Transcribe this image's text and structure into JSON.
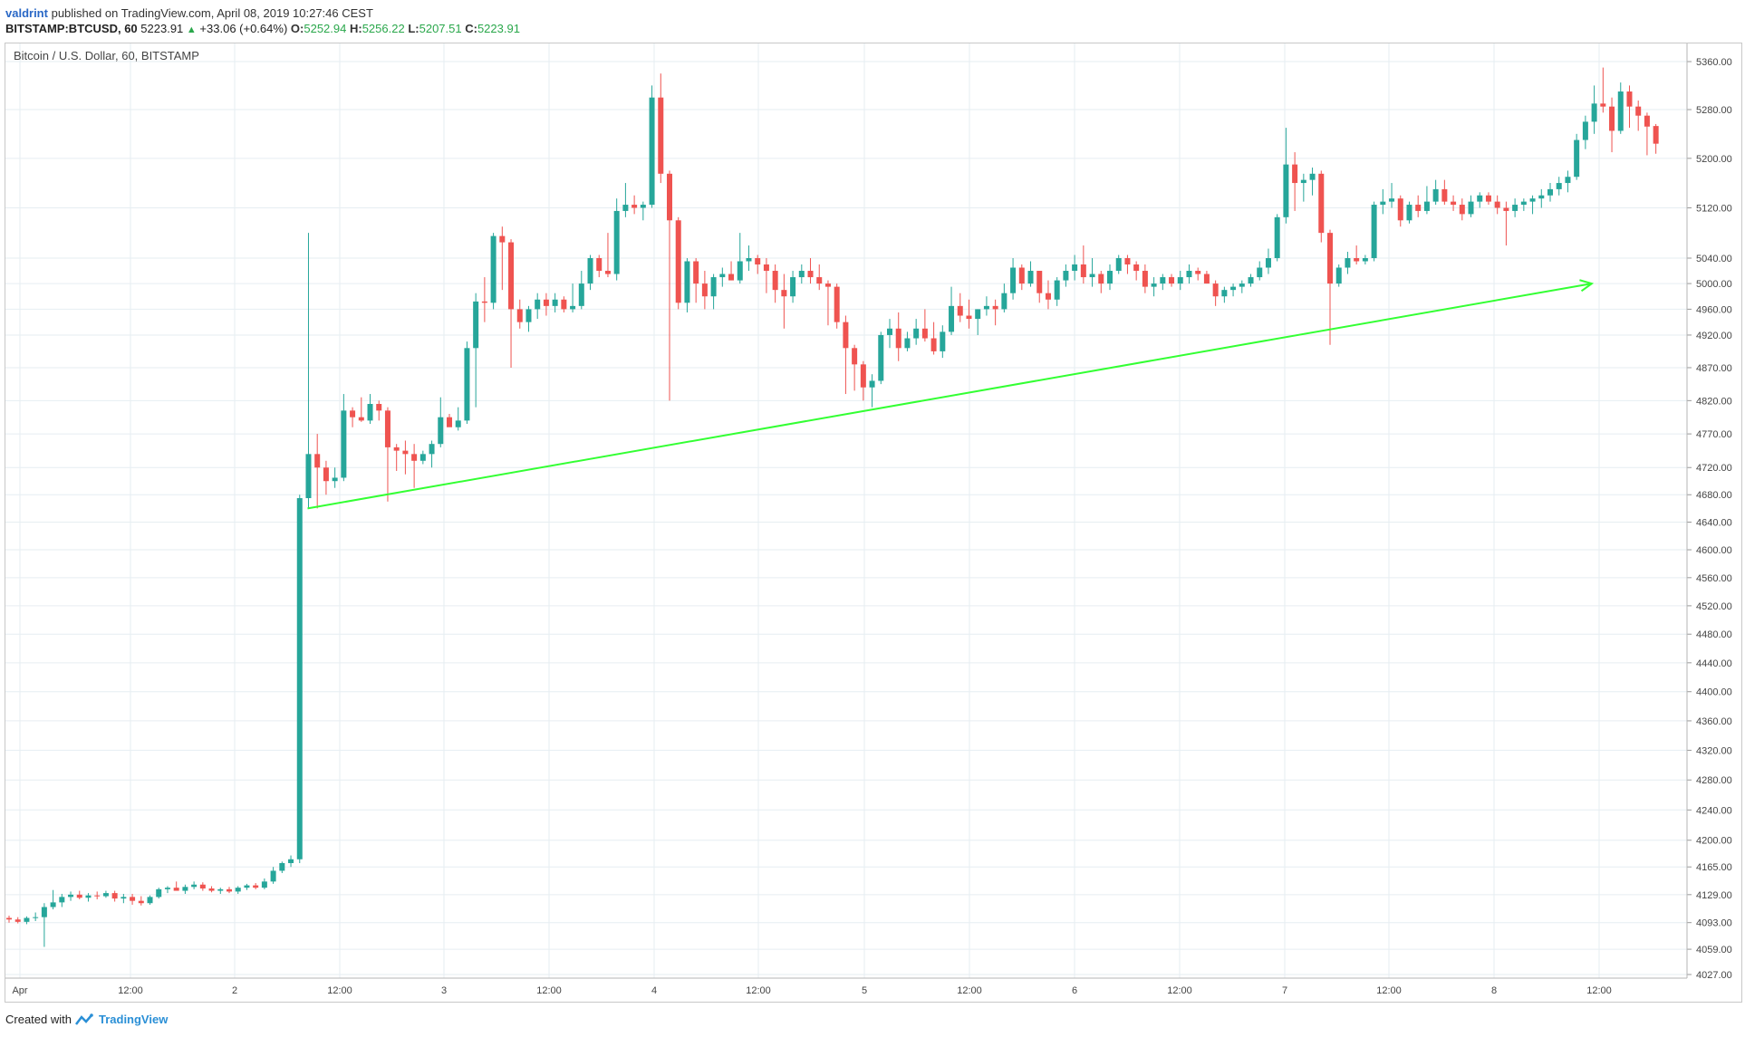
{
  "header": {
    "user": "valdrint",
    "published_text": "published on TradingView.com, April 08, 2019 10:27:46 CEST"
  },
  "ticker": {
    "symbol": "BITSTAMP:BTCUSD, 60",
    "last": "5223.91",
    "change": "+33.06 (+0.64%)",
    "open_label": "O:",
    "open": "5252.94",
    "high_label": "H:",
    "high": "5256.22",
    "low_label": "L:",
    "low": "5207.51",
    "close_label": "C:",
    "close": "5223.91"
  },
  "footer": {
    "created_with": "Created with",
    "brand": "TradingView"
  },
  "chart_data": {
    "type": "candlestick",
    "title": "Bitcoin / U.S. Dollar, 60, BITSTAMP",
    "timeframe": "60",
    "price_scale": "log",
    "y_ticks": [
      "5360.00",
      "5280.00",
      "5200.00",
      "5120.00",
      "5040.00",
      "5000.00",
      "4960.00",
      "4920.00",
      "4870.00",
      "4820.00",
      "4770.00",
      "4720.00",
      "4680.00",
      "4640.00",
      "4600.00",
      "4560.00",
      "4520.00",
      "4480.00",
      "4440.00",
      "4400.00",
      "4360.00",
      "4320.00",
      "4280.00",
      "4240.00",
      "4200.00",
      "4165.00",
      "4129.00",
      "4093.00",
      "4059.00",
      "4027.00"
    ],
    "x_ticks": [
      "Apr",
      "12:00",
      "2",
      "12:00",
      "3",
      "12:00",
      "4",
      "12:00",
      "5",
      "12:00",
      "6",
      "12:00",
      "7",
      "12:00",
      "8",
      "12:00"
    ],
    "colors": {
      "up": "#26a69a",
      "down": "#ef5350",
      "trendline": "#33ff33",
      "grid": "#e6eef2"
    },
    "trendline": {
      "start": {
        "candle_index": 34,
        "price": 4660
      },
      "end": {
        "candle_index": 179,
        "price": 5000
      },
      "arrow": true
    },
    "candles": [
      {
        "o": 4099,
        "h": 4102,
        "l": 4093,
        "c": 4097
      },
      {
        "o": 4097,
        "h": 4100,
        "l": 4092,
        "c": 4094
      },
      {
        "o": 4094,
        "h": 4101,
        "l": 4091,
        "c": 4099
      },
      {
        "o": 4099,
        "h": 4106,
        "l": 4095,
        "c": 4100
      },
      {
        "o": 4100,
        "h": 4118,
        "l": 4062,
        "c": 4113
      },
      {
        "o": 4113,
        "h": 4135,
        "l": 4110,
        "c": 4119
      },
      {
        "o": 4119,
        "h": 4130,
        "l": 4113,
        "c": 4126
      },
      {
        "o": 4126,
        "h": 4133,
        "l": 4121,
        "c": 4129
      },
      {
        "o": 4129,
        "h": 4134,
        "l": 4123,
        "c": 4125
      },
      {
        "o": 4125,
        "h": 4131,
        "l": 4120,
        "c": 4128
      },
      {
        "o": 4128,
        "h": 4133,
        "l": 4123,
        "c": 4127
      },
      {
        "o": 4127,
        "h": 4134,
        "l": 4125,
        "c": 4131
      },
      {
        "o": 4131,
        "h": 4134,
        "l": 4120,
        "c": 4124
      },
      {
        "o": 4124,
        "h": 4130,
        "l": 4118,
        "c": 4126
      },
      {
        "o": 4126,
        "h": 4130,
        "l": 4116,
        "c": 4121
      },
      {
        "o": 4121,
        "h": 4127,
        "l": 4115,
        "c": 4118
      },
      {
        "o": 4118,
        "h": 4128,
        "l": 4116,
        "c": 4126
      },
      {
        "o": 4126,
        "h": 4138,
        "l": 4124,
        "c": 4136
      },
      {
        "o": 4136,
        "h": 4140,
        "l": 4131,
        "c": 4138
      },
      {
        "o": 4138,
        "h": 4146,
        "l": 4135,
        "c": 4134
      },
      {
        "o": 4134,
        "h": 4142,
        "l": 4130,
        "c": 4139
      },
      {
        "o": 4139,
        "h": 4146,
        "l": 4136,
        "c": 4142
      },
      {
        "o": 4142,
        "h": 4145,
        "l": 4134,
        "c": 4137
      },
      {
        "o": 4137,
        "h": 4140,
        "l": 4132,
        "c": 4134
      },
      {
        "o": 4134,
        "h": 4138,
        "l": 4130,
        "c": 4136
      },
      {
        "o": 4136,
        "h": 4139,
        "l": 4131,
        "c": 4133
      },
      {
        "o": 4133,
        "h": 4140,
        "l": 4130,
        "c": 4138
      },
      {
        "o": 4138,
        "h": 4143,
        "l": 4135,
        "c": 4141
      },
      {
        "o": 4141,
        "h": 4144,
        "l": 4136,
        "c": 4138
      },
      {
        "o": 4138,
        "h": 4150,
        "l": 4136,
        "c": 4146
      },
      {
        "o": 4146,
        "h": 4165,
        "l": 4143,
        "c": 4160
      },
      {
        "o": 4160,
        "h": 4172,
        "l": 4157,
        "c": 4170
      },
      {
        "o": 4170,
        "h": 4180,
        "l": 4165,
        "c": 4175
      },
      {
        "o": 4175,
        "h": 4680,
        "l": 4170,
        "c": 4675
      },
      {
        "o": 4675,
        "h": 5080,
        "l": 4660,
        "c": 4740
      },
      {
        "o": 4740,
        "h": 4770,
        "l": 4660,
        "c": 4720
      },
      {
        "o": 4720,
        "h": 4730,
        "l": 4680,
        "c": 4700
      },
      {
        "o": 4700,
        "h": 4720,
        "l": 4690,
        "c": 4705
      },
      {
        "o": 4705,
        "h": 4830,
        "l": 4700,
        "c": 4805
      },
      {
        "o": 4805,
        "h": 4810,
        "l": 4780,
        "c": 4795
      },
      {
        "o": 4795,
        "h": 4825,
        "l": 4788,
        "c": 4790
      },
      {
        "o": 4790,
        "h": 4830,
        "l": 4785,
        "c": 4815
      },
      {
        "o": 4815,
        "h": 4820,
        "l": 4790,
        "c": 4805
      },
      {
        "o": 4805,
        "h": 4810,
        "l": 4670,
        "c": 4750
      },
      {
        "o": 4750,
        "h": 4755,
        "l": 4715,
        "c": 4745
      },
      {
        "o": 4745,
        "h": 4760,
        "l": 4710,
        "c": 4740
      },
      {
        "o": 4740,
        "h": 4755,
        "l": 4690,
        "c": 4730
      },
      {
        "o": 4730,
        "h": 4745,
        "l": 4725,
        "c": 4740
      },
      {
        "o": 4740,
        "h": 4760,
        "l": 4720,
        "c": 4755
      },
      {
        "o": 4755,
        "h": 4825,
        "l": 4750,
        "c": 4795
      },
      {
        "o": 4795,
        "h": 4800,
        "l": 4790,
        "c": 4780
      },
      {
        "o": 4780,
        "h": 4810,
        "l": 4775,
        "c": 4790
      },
      {
        "o": 4790,
        "h": 4910,
        "l": 4785,
        "c": 4900
      },
      {
        "o": 4900,
        "h": 4985,
        "l": 4810,
        "c": 4972
      },
      {
        "o": 4972,
        "h": 5010,
        "l": 4940,
        "c": 4970
      },
      {
        "o": 4970,
        "h": 5080,
        "l": 4960,
        "c": 5075
      },
      {
        "o": 5075,
        "h": 5090,
        "l": 4990,
        "c": 5065
      },
      {
        "o": 5065,
        "h": 5070,
        "l": 4870,
        "c": 4960
      },
      {
        "o": 4960,
        "h": 4975,
        "l": 4930,
        "c": 4940
      },
      {
        "o": 4940,
        "h": 4965,
        "l": 4925,
        "c": 4960
      },
      {
        "o": 4960,
        "h": 4985,
        "l": 4945,
        "c": 4975
      },
      {
        "o": 4975,
        "h": 4985,
        "l": 4950,
        "c": 4965
      },
      {
        "o": 4965,
        "h": 4985,
        "l": 4955,
        "c": 4975
      },
      {
        "o": 4975,
        "h": 4980,
        "l": 4955,
        "c": 4960
      },
      {
        "o": 4960,
        "h": 5000,
        "l": 4955,
        "c": 4965
      },
      {
        "o": 4965,
        "h": 5020,
        "l": 4960,
        "c": 5000
      },
      {
        "o": 5000,
        "h": 5045,
        "l": 4990,
        "c": 5040
      },
      {
        "o": 5040,
        "h": 5045,
        "l": 5010,
        "c": 5020
      },
      {
        "o": 5020,
        "h": 5080,
        "l": 5010,
        "c": 5015
      },
      {
        "o": 5015,
        "h": 5135,
        "l": 5005,
        "c": 5115
      },
      {
        "o": 5115,
        "h": 5160,
        "l": 5105,
        "c": 5125
      },
      {
        "o": 5125,
        "h": 5140,
        "l": 5110,
        "c": 5120
      },
      {
        "o": 5120,
        "h": 5130,
        "l": 5100,
        "c": 5125
      },
      {
        "o": 5125,
        "h": 5320,
        "l": 5120,
        "c": 5300
      },
      {
        "o": 5300,
        "h": 5340,
        "l": 5160,
        "c": 5175
      },
      {
        "o": 5175,
        "h": 5180,
        "l": 4820,
        "c": 5100
      },
      {
        "o": 5100,
        "h": 5105,
        "l": 4960,
        "c": 4970
      },
      {
        "o": 4970,
        "h": 5040,
        "l": 4955,
        "c": 5035
      },
      {
        "o": 5035,
        "h": 5040,
        "l": 4970,
        "c": 5000
      },
      {
        "o": 5000,
        "h": 5020,
        "l": 4960,
        "c": 4980
      },
      {
        "o": 4980,
        "h": 5015,
        "l": 4960,
        "c": 5010
      },
      {
        "o": 5010,
        "h": 5025,
        "l": 4995,
        "c": 5015
      },
      {
        "o": 5015,
        "h": 5035,
        "l": 5005,
        "c": 5005
      },
      {
        "o": 5005,
        "h": 5080,
        "l": 5000,
        "c": 5035
      },
      {
        "o": 5035,
        "h": 5060,
        "l": 5020,
        "c": 5040
      },
      {
        "o": 5040,
        "h": 5045,
        "l": 5015,
        "c": 5030
      },
      {
        "o": 5030,
        "h": 5040,
        "l": 4985,
        "c": 5020
      },
      {
        "o": 5020,
        "h": 5030,
        "l": 4970,
        "c": 4990
      },
      {
        "o": 4990,
        "h": 5015,
        "l": 4930,
        "c": 4980
      },
      {
        "o": 4980,
        "h": 5020,
        "l": 4970,
        "c": 5010
      },
      {
        "o": 5010,
        "h": 5030,
        "l": 5000,
        "c": 5020
      },
      {
        "o": 5020,
        "h": 5040,
        "l": 5000,
        "c": 5010
      },
      {
        "o": 5010,
        "h": 5030,
        "l": 4990,
        "c": 5000
      },
      {
        "o": 5000,
        "h": 5005,
        "l": 4935,
        "c": 4995
      },
      {
        "o": 4995,
        "h": 5000,
        "l": 4930,
        "c": 4940
      },
      {
        "o": 4940,
        "h": 4950,
        "l": 4830,
        "c": 4900
      },
      {
        "o": 4900,
        "h": 4905,
        "l": 4835,
        "c": 4875
      },
      {
        "o": 4875,
        "h": 4880,
        "l": 4820,
        "c": 4840
      },
      {
        "o": 4840,
        "h": 4860,
        "l": 4810,
        "c": 4850
      },
      {
        "o": 4850,
        "h": 4925,
        "l": 4845,
        "c": 4920
      },
      {
        "o": 4920,
        "h": 4945,
        "l": 4900,
        "c": 4930
      },
      {
        "o": 4930,
        "h": 4955,
        "l": 4880,
        "c": 4900
      },
      {
        "o": 4900,
        "h": 4925,
        "l": 4895,
        "c": 4915
      },
      {
        "o": 4915,
        "h": 4945,
        "l": 4905,
        "c": 4930
      },
      {
        "o": 4930,
        "h": 4960,
        "l": 4910,
        "c": 4915
      },
      {
        "o": 4915,
        "h": 4940,
        "l": 4890,
        "c": 4895
      },
      {
        "o": 4895,
        "h": 4935,
        "l": 4885,
        "c": 4925
      },
      {
        "o": 4925,
        "h": 4995,
        "l": 4920,
        "c": 4965
      },
      {
        "o": 4965,
        "h": 4985,
        "l": 4940,
        "c": 4950
      },
      {
        "o": 4950,
        "h": 4975,
        "l": 4930,
        "c": 4945
      },
      {
        "o": 4945,
        "h": 4960,
        "l": 4920,
        "c": 4960
      },
      {
        "o": 4960,
        "h": 4980,
        "l": 4950,
        "c": 4965
      },
      {
        "o": 4965,
        "h": 4975,
        "l": 4935,
        "c": 4960
      },
      {
        "o": 4960,
        "h": 5000,
        "l": 4955,
        "c": 4985
      },
      {
        "o": 4985,
        "h": 5040,
        "l": 4975,
        "c": 5025
      },
      {
        "o": 5025,
        "h": 5030,
        "l": 4990,
        "c": 5000
      },
      {
        "o": 5000,
        "h": 5035,
        "l": 4995,
        "c": 5020
      },
      {
        "o": 5020,
        "h": 5020,
        "l": 4970,
        "c": 4985
      },
      {
        "o": 4985,
        "h": 5005,
        "l": 4960,
        "c": 4975
      },
      {
        "o": 4975,
        "h": 5010,
        "l": 4965,
        "c": 5005
      },
      {
        "o": 5005,
        "h": 5030,
        "l": 4995,
        "c": 5020
      },
      {
        "o": 5020,
        "h": 5045,
        "l": 5005,
        "c": 5030
      },
      {
        "o": 5030,
        "h": 5060,
        "l": 5000,
        "c": 5010
      },
      {
        "o": 5010,
        "h": 5040,
        "l": 4995,
        "c": 5015
      },
      {
        "o": 5015,
        "h": 5020,
        "l": 4985,
        "c": 5000
      },
      {
        "o": 5000,
        "h": 5030,
        "l": 4990,
        "c": 5020
      },
      {
        "o": 5020,
        "h": 5045,
        "l": 5015,
        "c": 5040
      },
      {
        "o": 5040,
        "h": 5045,
        "l": 5015,
        "c": 5030
      },
      {
        "o": 5030,
        "h": 5035,
        "l": 5005,
        "c": 5020
      },
      {
        "o": 5020,
        "h": 5030,
        "l": 4985,
        "c": 4995
      },
      {
        "o": 4995,
        "h": 5010,
        "l": 4980,
        "c": 5000
      },
      {
        "o": 5000,
        "h": 5015,
        "l": 4990,
        "c": 5010
      },
      {
        "o": 5010,
        "h": 5015,
        "l": 4995,
        "c": 5000
      },
      {
        "o": 5000,
        "h": 5020,
        "l": 4990,
        "c": 5010
      },
      {
        "o": 5010,
        "h": 5030,
        "l": 5000,
        "c": 5020
      },
      {
        "o": 5020,
        "h": 5025,
        "l": 5005,
        "c": 5015
      },
      {
        "o": 5015,
        "h": 5020,
        "l": 5000,
        "c": 5000
      },
      {
        "o": 5000,
        "h": 5005,
        "l": 4965,
        "c": 4980
      },
      {
        "o": 4980,
        "h": 4995,
        "l": 4970,
        "c": 4990
      },
      {
        "o": 4990,
        "h": 5000,
        "l": 4980,
        "c": 4995
      },
      {
        "o": 4995,
        "h": 5005,
        "l": 4985,
        "c": 5000
      },
      {
        "o": 5000,
        "h": 5015,
        "l": 4995,
        "c": 5010
      },
      {
        "o": 5010,
        "h": 5035,
        "l": 5005,
        "c": 5025
      },
      {
        "o": 5025,
        "h": 5055,
        "l": 5015,
        "c": 5040
      },
      {
        "o": 5040,
        "h": 5110,
        "l": 5035,
        "c": 5105
      },
      {
        "o": 5105,
        "h": 5250,
        "l": 5095,
        "c": 5190
      },
      {
        "o": 5190,
        "h": 5210,
        "l": 5115,
        "c": 5160
      },
      {
        "o": 5160,
        "h": 5175,
        "l": 5130,
        "c": 5165
      },
      {
        "o": 5165,
        "h": 5185,
        "l": 5140,
        "c": 5175
      },
      {
        "o": 5175,
        "h": 5180,
        "l": 5065,
        "c": 5080
      },
      {
        "o": 5080,
        "h": 5085,
        "l": 4905,
        "c": 5000
      },
      {
        "o": 5000,
        "h": 5030,
        "l": 4995,
        "c": 5025
      },
      {
        "o": 5025,
        "h": 5050,
        "l": 5015,
        "c": 5040
      },
      {
        "o": 5040,
        "h": 5060,
        "l": 5030,
        "c": 5035
      },
      {
        "o": 5035,
        "h": 5045,
        "l": 5030,
        "c": 5040
      },
      {
        "o": 5040,
        "h": 5130,
        "l": 5035,
        "c": 5125
      },
      {
        "o": 5125,
        "h": 5150,
        "l": 5110,
        "c": 5130
      },
      {
        "o": 5130,
        "h": 5160,
        "l": 5120,
        "c": 5135
      },
      {
        "o": 5135,
        "h": 5140,
        "l": 5090,
        "c": 5100
      },
      {
        "o": 5100,
        "h": 5130,
        "l": 5095,
        "c": 5125
      },
      {
        "o": 5125,
        "h": 5140,
        "l": 5105,
        "c": 5115
      },
      {
        "o": 5115,
        "h": 5155,
        "l": 5110,
        "c": 5130
      },
      {
        "o": 5130,
        "h": 5165,
        "l": 5125,
        "c": 5150
      },
      {
        "o": 5150,
        "h": 5165,
        "l": 5125,
        "c": 5130
      },
      {
        "o": 5130,
        "h": 5140,
        "l": 5115,
        "c": 5125
      },
      {
        "o": 5125,
        "h": 5135,
        "l": 5100,
        "c": 5110
      },
      {
        "o": 5110,
        "h": 5140,
        "l": 5105,
        "c": 5130
      },
      {
        "o": 5130,
        "h": 5145,
        "l": 5120,
        "c": 5140
      },
      {
        "o": 5140,
        "h": 5145,
        "l": 5125,
        "c": 5130
      },
      {
        "o": 5130,
        "h": 5140,
        "l": 5110,
        "c": 5120
      },
      {
        "o": 5120,
        "h": 5130,
        "l": 5060,
        "c": 5115
      },
      {
        "o": 5115,
        "h": 5135,
        "l": 5105,
        "c": 5125
      },
      {
        "o": 5125,
        "h": 5135,
        "l": 5115,
        "c": 5130
      },
      {
        "o": 5130,
        "h": 5140,
        "l": 5110,
        "c": 5135
      },
      {
        "o": 5135,
        "h": 5150,
        "l": 5120,
        "c": 5140
      },
      {
        "o": 5140,
        "h": 5160,
        "l": 5130,
        "c": 5150
      },
      {
        "o": 5150,
        "h": 5170,
        "l": 5140,
        "c": 5160
      },
      {
        "o": 5160,
        "h": 5180,
        "l": 5145,
        "c": 5170
      },
      {
        "o": 5170,
        "h": 5240,
        "l": 5165,
        "c": 5230
      },
      {
        "o": 5230,
        "h": 5270,
        "l": 5215,
        "c": 5260
      },
      {
        "o": 5260,
        "h": 5320,
        "l": 5240,
        "c": 5290
      },
      {
        "o": 5290,
        "h": 5350,
        "l": 5275,
        "c": 5285
      },
      {
        "o": 5285,
        "h": 5300,
        "l": 5210,
        "c": 5245
      },
      {
        "o": 5245,
        "h": 5325,
        "l": 5240,
        "c": 5310
      },
      {
        "o": 5310,
        "h": 5320,
        "l": 5250,
        "c": 5285
      },
      {
        "o": 5285,
        "h": 5295,
        "l": 5245,
        "c": 5270
      },
      {
        "o": 5270,
        "h": 5275,
        "l": 5205,
        "c": 5252
      },
      {
        "o": 5252.94,
        "h": 5256.22,
        "l": 5207.51,
        "c": 5223.91
      }
    ]
  }
}
